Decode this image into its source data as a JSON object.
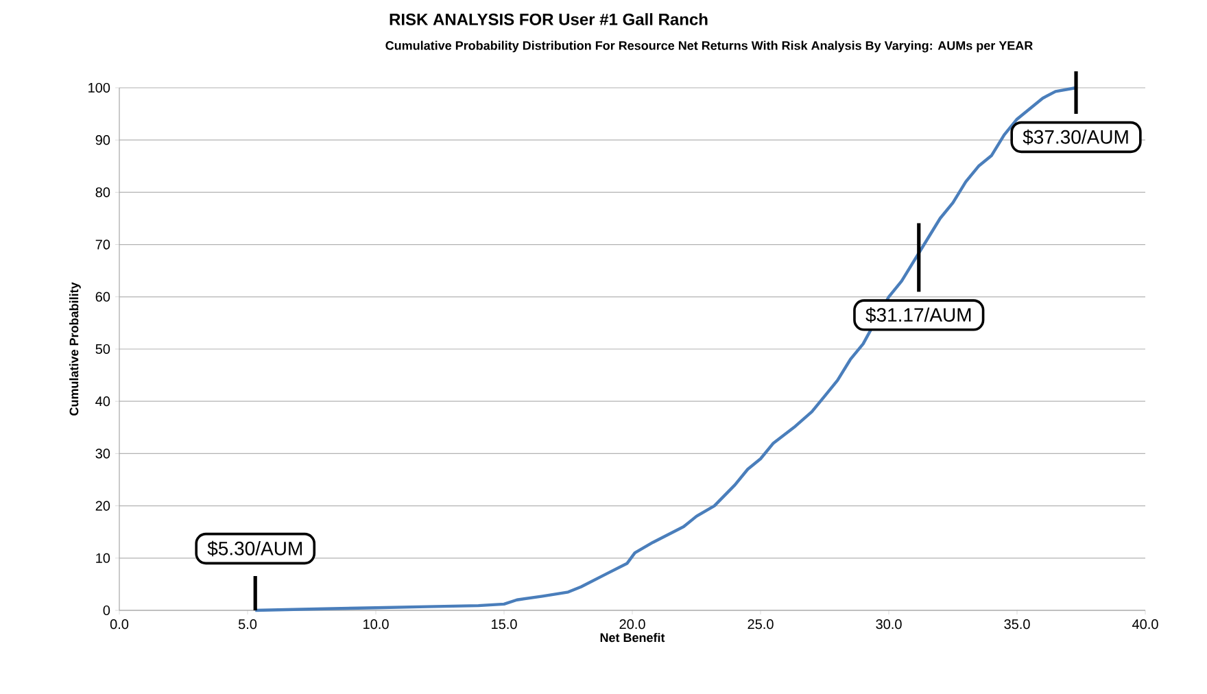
{
  "chart_data": {
    "type": "line",
    "title": "RISK ANALYSIS FOR User #1 Gall Ranch",
    "subtitle": "Cumulative Probability Distribution For Resource Net Returns With Risk Analysis By Varying: AUMs per YEAR",
    "xlabel": "Net Benefit",
    "ylabel": "Cumulative Probability",
    "x": [
      5.3,
      8,
      10,
      12,
      14,
      15,
      15.5,
      16.5,
      17.5,
      18,
      19,
      19.8,
      20.1,
      20.8,
      22,
      22.5,
      23.2,
      24,
      24.5,
      25,
      25.5,
      26.3,
      27,
      27.5,
      28,
      28.5,
      29,
      29.5,
      30,
      30.5,
      31,
      31.5,
      32,
      32.5,
      33,
      33.5,
      34,
      34.5,
      35,
      35.5,
      36,
      36.5,
      37.3
    ],
    "series": [
      {
        "color": "#4a7ebb",
        "values": [
          0,
          0.3,
          0.5,
          0.7,
          0.9,
          1.2,
          2,
          2.7,
          3.5,
          4.5,
          7,
          9,
          11,
          13,
          16,
          18,
          20,
          24,
          27,
          29,
          32,
          35,
          38,
          41,
          44,
          48,
          51,
          null,
          60,
          63,
          67,
          71,
          75,
          78,
          82,
          85,
          87,
          91,
          94,
          96,
          98,
          99.3,
          100
        ]
      }
    ],
    "xlim": [
      0,
      40
    ],
    "ylim": [
      0,
      100
    ],
    "xticks": [
      {
        "value": 0,
        "label": "0.0"
      },
      {
        "value": 5,
        "label": "5.0"
      },
      {
        "value": 10,
        "label": "10.0"
      },
      {
        "value": 15,
        "label": "15.0"
      },
      {
        "value": 20,
        "label": "20.0"
      },
      {
        "value": 25,
        "label": "25.0"
      },
      {
        "value": 30,
        "label": "30.0"
      },
      {
        "value": 35,
        "label": "35.0"
      },
      {
        "value": 40,
        "label": "40.0"
      }
    ],
    "yticks": [
      0,
      10,
      20,
      30,
      40,
      50,
      60,
      70,
      80,
      90,
      100
    ],
    "grid": "y",
    "marker": "none",
    "line_style": "solid",
    "annotations": [
      {
        "text": "$5.30/AUM",
        "x": 5.3,
        "y": 0
      },
      {
        "text": "$31.17/AUM",
        "x": 31.17,
        "y": 67
      },
      {
        "text": "$37.30/AUM",
        "x": 37.3,
        "y": 100
      }
    ]
  }
}
